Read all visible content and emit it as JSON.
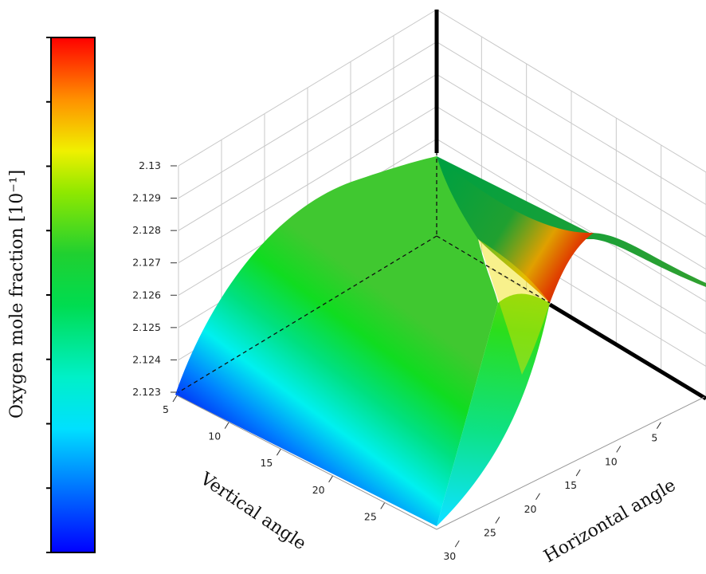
{
  "chart_data": {
    "type": "surface3d",
    "z": {
      "label": "Oxygen mole fraction [10⁻¹]",
      "ticks": [
        "2.123",
        "2.124",
        "2.125",
        "2.126",
        "2.127",
        "2.128",
        "2.129",
        "2.13"
      ],
      "range": [
        2.123,
        2.13
      ]
    },
    "vertical_angle": {
      "label": "Vertical angle",
      "ticks": [
        "5",
        "10",
        "15",
        "20",
        "25"
      ],
      "range": [
        5,
        30
      ]
    },
    "horizontal_angle": {
      "label": "Horizontal angle",
      "ticks": [
        "5",
        "10",
        "15",
        "20",
        "25",
        "30"
      ],
      "range": [
        0,
        32
      ]
    },
    "surface": {
      "description_values": {
        "z_min_corner": 2.123,
        "z_peak_near_h0_v5": 2.1295,
        "z_peak_ridge_h12": 2.1281
      }
    },
    "colorbar": {
      "colors": [
        "#0000ff",
        "#0060ff",
        "#00c8ff",
        "#00f0c0",
        "#00dc50",
        "#10c830",
        "#78e000",
        "#f0f000",
        "#ffa000",
        "#ff5000",
        "#ff0000"
      ],
      "tick_count": 8
    }
  }
}
